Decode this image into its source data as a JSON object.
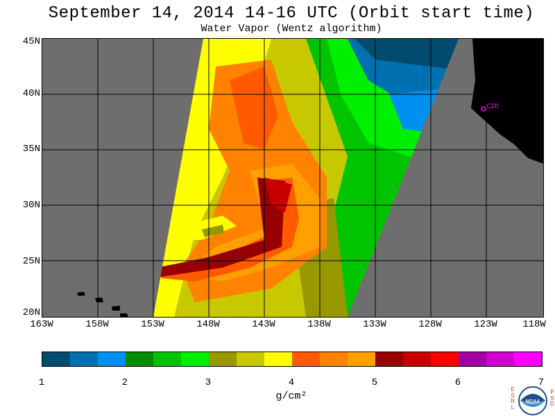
{
  "title": "September 14, 2014  14-16 UTC  (Orbit start time)",
  "subtitle": "Water Vapor (Wentz algorithm)",
  "map": {
    "latitude_labels": [
      "45N",
      "40N",
      "35N",
      "30N",
      "25N",
      "20N"
    ],
    "longitude_labels": [
      "163W",
      "158W",
      "153W",
      "148W",
      "143W",
      "138W",
      "133W",
      "128W",
      "123W",
      "118W"
    ],
    "station_label": "CZD",
    "background_color": "#6e6e6e",
    "land_color": "#000000"
  },
  "colorbar": {
    "colors": [
      "#004b6e",
      "#0070b0",
      "#0090f0",
      "#008c00",
      "#00c400",
      "#00f000",
      "#989800",
      "#c8c800",
      "#ffff00",
      "#ff5a00",
      "#ff8200",
      "#ffa000",
      "#960000",
      "#c80000",
      "#ff0000",
      "#a000a0",
      "#d000d0",
      "#ff00ff"
    ],
    "ticks": [
      "1",
      "2",
      "3",
      "4",
      "5",
      "6",
      "7"
    ],
    "units": "g/cm²"
  },
  "logo": {
    "left_letters": [
      "E",
      "S",
      "R",
      "L"
    ],
    "right_letters": [
      "P",
      "S",
      "D"
    ],
    "center_text": "NOAA"
  }
}
